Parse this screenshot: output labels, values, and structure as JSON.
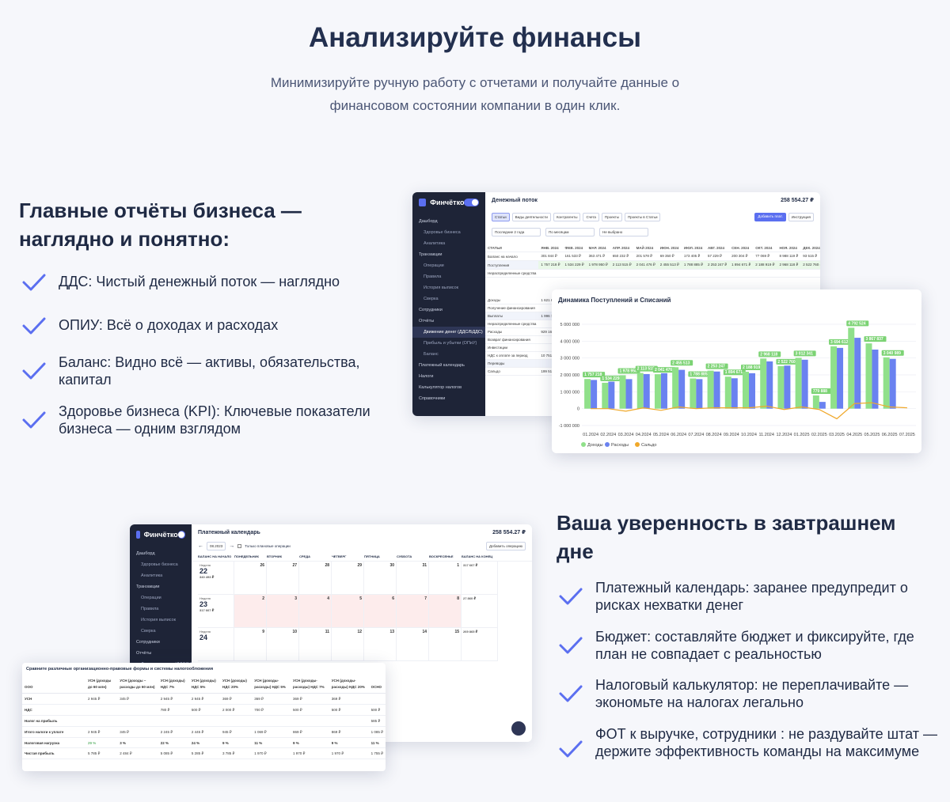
{
  "hero": {
    "title": "Анализируйте финансы",
    "subtitle": "Минимизируйте ручную работу с отчетами и получайте данные о финансовом состоянии компании в один клик."
  },
  "block1": {
    "title": "Главные отчёты бизнеса — наглядно и понятно:",
    "features": [
      "ДДС: Чистый денежный поток — наглядно",
      "ОПИУ: Всё о доходах и расходах",
      "Баланс: Видно всё — активы, обязательства, капитал",
      "Здоровье бизнеса (KPI): Ключевые показатели бизнеса — одним взглядом"
    ]
  },
  "block2": {
    "title": "Ваша уверенность в завтрашнем дне",
    "features": [
      "Платежный календарь: заранее предупредит о рисках нехватки денег",
      "Бюджет: составляйте бюджет и фиксируйте, где план не совпадает с реальностью",
      "Налоговый калькулятор: не переплачивайте — экономьте на налогах легально",
      "ФОТ к выручке, сотрудники : не раздувайте штат — держите эффективность команды на максимуме"
    ]
  },
  "app": {
    "logo": "Финчётко",
    "sidebar": [
      "Дашборд",
      "Здоровье бизнеса",
      "Аналитика",
      "Транзакции",
      "Операции",
      "Правила",
      "История выписок",
      "Сверка",
      "Сотрудники",
      "Отчёты",
      "Движение денег (ДДС/БДДС)",
      "Прибыль и убытки (ОПиУ)",
      "Баланс",
      "Платежный календарь",
      "Налоги",
      "Калькулятор налогов",
      "Справочники"
    ],
    "balance": "258 554.27 ₽"
  },
  "cashflow": {
    "title": "Денежный поток",
    "tabs": [
      "Статьи",
      "Виды деятельности",
      "Контрагенты",
      "Счета",
      "Проекты",
      "Проекты в Статьи"
    ],
    "add_button": "Добавить плат.",
    "instr_button": "Инструкция",
    "filters": [
      "Последние 2 года",
      "По месяцам",
      "Не выбрано"
    ],
    "columns": [
      "СТАТЬИ",
      "ЯНВ. 2024",
      "ФЕВ. 2024",
      "МАР. 2024",
      "АПР. 2024",
      "МАЙ 2024",
      "ИЮН. 2024",
      "ИЮЛ. 2024",
      "АВГ. 2024",
      "СЕН. 2024",
      "ОКТ. 2024",
      "НОЯ. 2024",
      "ДЕК. 2024"
    ],
    "rows": [
      {
        "name": "Баланс на начало",
        "vals": [
          "301 844 ₽",
          "161 533 ₽",
          "363 471 ₽",
          "650 232 ₽",
          "201 578 ₽",
          "69 350 ₽",
          "173 405 ₽",
          "57 229 ₽",
          "200 304 ₽",
          "77 069 ₽",
          "8 988 119 ₽",
          "93 515 ₽"
        ]
      },
      {
        "name": "Поступления",
        "vals": [
          "1 757 218 ₽",
          "1 534 229 ₽",
          "1 978 950 ₽",
          "2 113 515 ₽",
          "2 041 476 ₽",
          "2 455 513 ₽",
          "1 788 885 ₽",
          "2 253 247 ₽",
          "1 894 671 ₽",
          "2 188 919 ₽",
          "2 968 118 ₽",
          "2 522 760 ₽"
        ]
      },
      {
        "name": "Нераспределенные средства",
        "vals": [
          "",
          "",
          "",
          "",
          "",
          "",
          "",
          "",
          "",
          "",
          "",
          ""
        ]
      }
    ],
    "side_rows": [
      "Доходы",
      "Получение финансирования",
      "Выплаты",
      "Нераспределенные средства",
      "Расходы",
      "Возврат финансирования",
      "Инвестиции",
      "НДС к оплате за период",
      "Переводы",
      "Сальдо"
    ],
    "side_vals": [
      "1 621 84",
      "",
      "1 996 73",
      "",
      "929 161",
      "",
      "",
      "10 751",
      "",
      "199 513"
    ]
  },
  "chart_data": {
    "type": "bar",
    "title": "Динамика Поступлений и Списаний",
    "categories": [
      "01.2024",
      "02.2024",
      "03.2024",
      "04.2024",
      "05.2024",
      "06.2024",
      "07.2024",
      "08.2024",
      "09.2024",
      "10.2024",
      "11.2024",
      "12.2024",
      "01.2025",
      "02.2025",
      "03.2025",
      "04.2025",
      "05.2025",
      "06.2025",
      "07.2025"
    ],
    "series": [
      {
        "name": "Доходы",
        "color": "#90e08a",
        "values": [
          1757218,
          1534229,
          1978950,
          2113515,
          2041476,
          2455513,
          1788885,
          2253247,
          1894671,
          2188919,
          2968118,
          2522760,
          3012341,
          779888,
          3694612,
          4792524,
          3867837,
          3040989,
          0
        ]
      },
      {
        "name": "Расходы",
        "color": "#6a82f0",
        "values": [
          1700000,
          1600000,
          1750000,
          2050000,
          2100000,
          2300000,
          1750000,
          2200000,
          1800000,
          2100000,
          2800000,
          2550000,
          2900000,
          400000,
          3600000,
          4200000,
          3500000,
          2950000,
          0
        ]
      },
      {
        "name": "Сальдо",
        "color": "#f0a82a",
        "values": [
          0,
          0,
          -150000,
          50000,
          -100000,
          100000,
          0,
          50000,
          50000,
          50000,
          150000,
          -50000,
          100000,
          -50000,
          -600000,
          300000,
          350000,
          100000,
          50000
        ]
      }
    ],
    "bar_labels": [
      "1 757 218",
      "1 534 229",
      "1 978 950",
      "2 113 515",
      "2 041 476",
      "2 455 513",
      "1 788 885",
      "2 253 247",
      "1 894 671",
      "2 188 919",
      "2 968 118",
      "2 522 760",
      "3 012 341",
      "779 888",
      "3 694 612",
      "4 792 524",
      "3 867 837",
      "3 040 989"
    ],
    "y_ticks": [
      "5 000 000",
      "4 000 000",
      "3 000 000",
      "2 000 000",
      "1 000 000",
      "0",
      "-1 000 000"
    ],
    "ylim": [
      -1000000,
      5000000
    ],
    "legend": "bottom"
  },
  "calendar": {
    "title": "Платежный календарь",
    "date": "08.2023",
    "checkbox_label": "Только плановые операции",
    "add_button": "Добавить операцию",
    "columns": [
      "БАЛАНС НА НАЧАЛО",
      "ПОНЕДЕЛЬНИК",
      "ВТОРНИК",
      "СРЕДА",
      "ЧЕТВЕРГ",
      "ПЯТНИЦА",
      "СУББОТА",
      "ВОСКРЕСЕНЬЕ",
      "БАЛАНС НА КОНЕЦ"
    ],
    "weeks": [
      {
        "label": "Неделя",
        "num": "22",
        "bal": "340 493 ₽",
        "days": [
          "26",
          "27",
          "28",
          "29",
          "30",
          "31",
          "1"
        ],
        "end": "317 667 ₽"
      },
      {
        "label": "Неделя",
        "num": "23",
        "bal": "317 667 ₽",
        "days": [
          "2",
          "3",
          "4",
          "5",
          "6",
          "7",
          "8"
        ],
        "end": "27 860 ₽"
      },
      {
        "label": "Неделя",
        "num": "24",
        "bal": "",
        "days": [
          "9",
          "10",
          "11",
          "12",
          "13",
          "14",
          "15"
        ],
        "end": "269 865 ₽"
      }
    ]
  },
  "tax": {
    "title": "Сравните различные организационно-правовые формы и системы налогообложения",
    "headers": [
      "ООО",
      "УСН (доходы до 60 млн)",
      "УСН (доходы – расходы до 60 млн)",
      "УСН (доходы) НДС 7%",
      "УСН (доходы) НДС 5%",
      "УСН (доходы) НДС 20%",
      "УСН (доходы-расходы) НДС 5%",
      "УСН (доходы-расходы) НДС 7%",
      "УСН (доходы-расходы) НДС 20%",
      "ОСНО"
    ],
    "rows": [
      {
        "name": "УСН",
        "vals": [
          "2 945 ₽",
          "345 ₽",
          "2 945 ₽",
          "2 945 ₽",
          "369 ₽",
          "369 ₽",
          "369 ₽",
          "369 ₽",
          ""
        ]
      },
      {
        "name": "НДС",
        "vals": [
          "",
          "",
          "780 ₽",
          "500 ₽",
          "2 000 ₽",
          "700 ₽",
          "500 ₽",
          "500 ₽",
          "500 ₽"
        ]
      },
      {
        "name": "Налог на прибыль",
        "vals": [
          "",
          "",
          "",
          "",
          "",
          "",
          "",
          "",
          "585 ₽"
        ]
      },
      {
        "name": "Итого налоги к уплате",
        "vals": [
          "2 945 ₽",
          "345 ₽",
          "2 245 ₽",
          "2 445 ₽",
          "945 ₽",
          "1 069 ₽",
          "869 ₽",
          "869 ₽",
          "1 085 ₽"
        ]
      },
      {
        "name": "Налоговая нагрузка",
        "vals": [
          "29 %",
          "3 %",
          "22 %",
          "24 %",
          "9 %",
          "11 %",
          "9 %",
          "9 %",
          "11 %"
        ]
      },
      {
        "name": "Чистая прибыль",
        "vals": [
          "5 785 ₽",
          "2 484 ₽",
          "5 085 ₽",
          "5 285 ₽",
          "3 785 ₽",
          "1 970 ₽",
          "1 970 ₽",
          "1 970 ₽",
          "1 755 ₽"
        ]
      }
    ]
  }
}
